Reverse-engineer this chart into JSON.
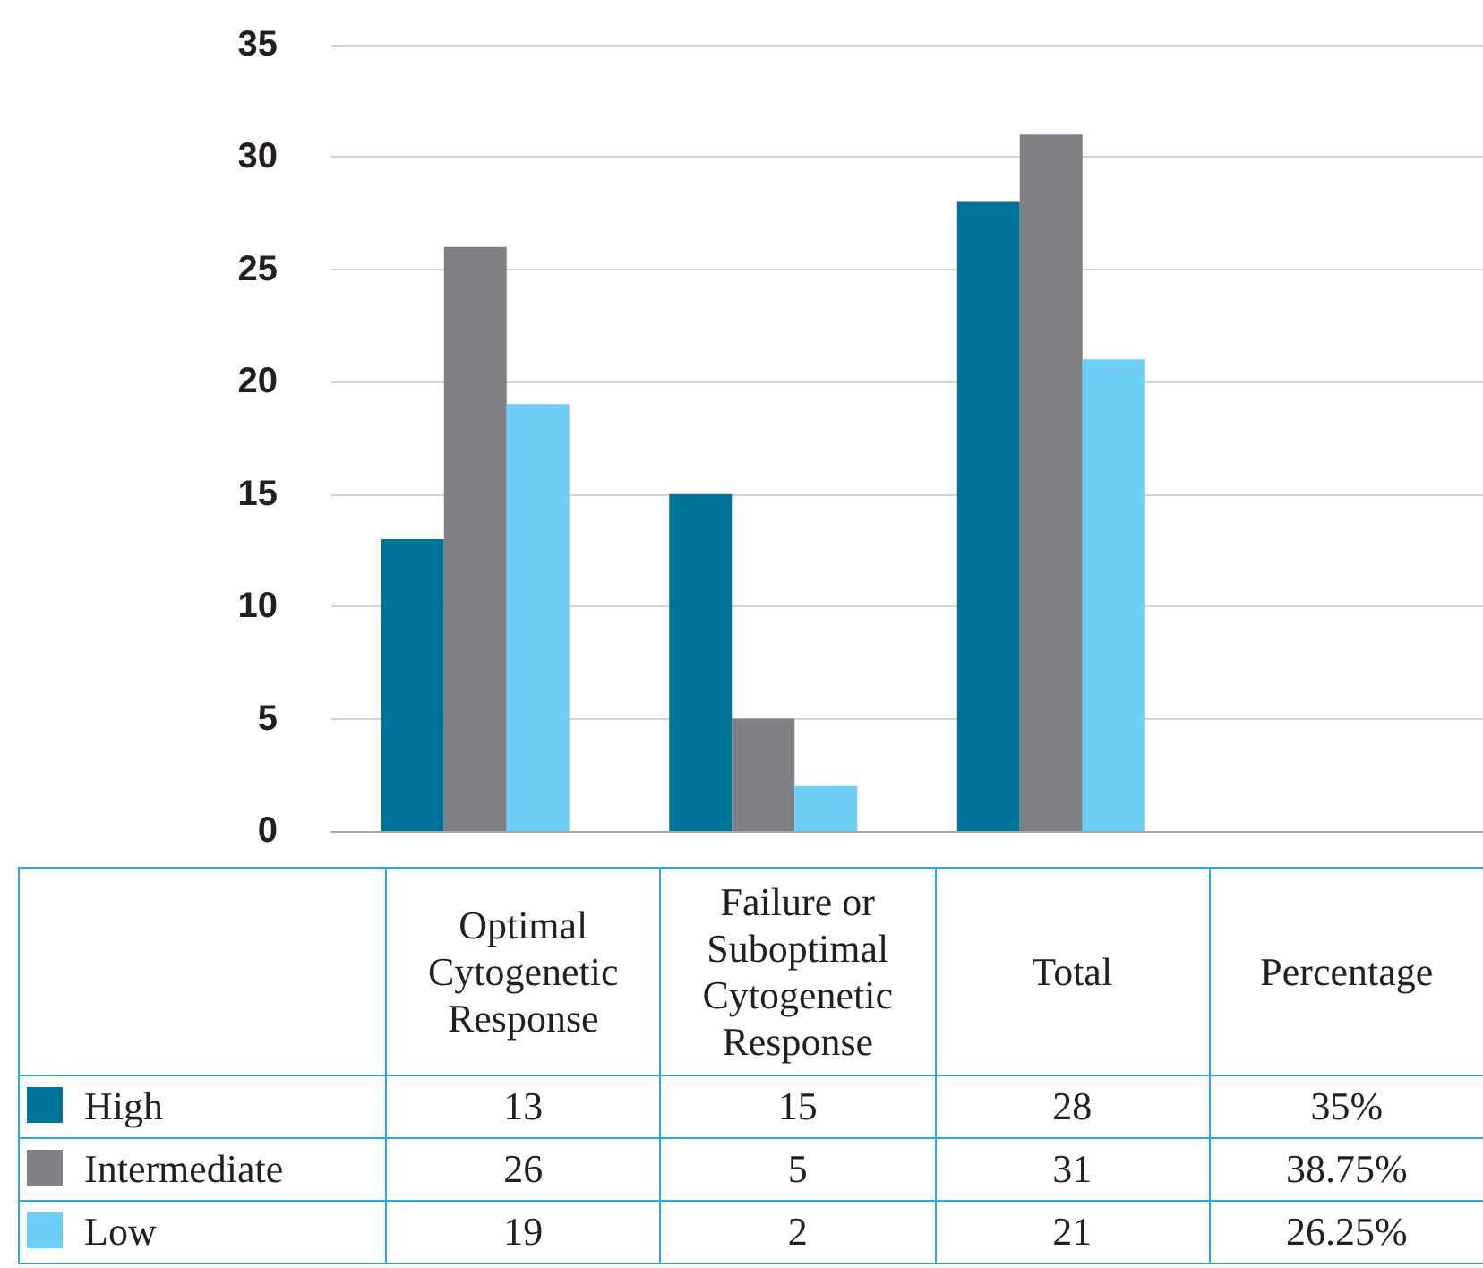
{
  "chart_data": {
    "type": "bar",
    "categories": [
      "Optimal Cytogenetic Response",
      "Failure or Suboptimal Cytogenetic Response",
      "Total",
      "Percentage"
    ],
    "series": [
      {
        "name": "High",
        "color": "#00739b",
        "values": [
          13,
          15,
          28,
          null
        ],
        "value_labels": [
          "13",
          "15",
          "28",
          "35%"
        ]
      },
      {
        "name": "Intermediate",
        "color": "#808184",
        "values": [
          26,
          5,
          31,
          null
        ],
        "value_labels": [
          "26",
          "5",
          "31",
          "38.75%"
        ]
      },
      {
        "name": "Low",
        "color": "#6dcff6",
        "values": [
          19,
          2,
          21,
          null
        ],
        "value_labels": [
          "19",
          "2",
          "21",
          "26.25%"
        ]
      }
    ],
    "ylim": [
      0,
      35
    ],
    "yticks": [
      0,
      5,
      10,
      15,
      20,
      25,
      30,
      35
    ],
    "grid": "y",
    "legend": "bottom"
  }
}
